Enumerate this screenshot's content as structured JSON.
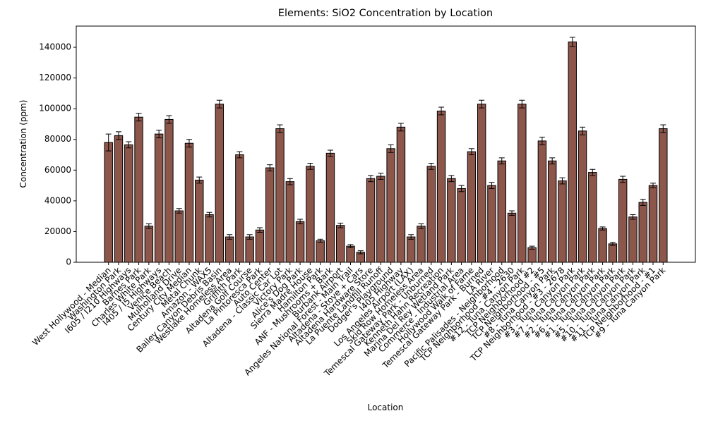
{
  "chart_data": {
    "type": "bar",
    "title": "Elements: SiO2 Concentration by Location",
    "xlabel": "Location",
    "ylabel": "Concentration (ppm)",
    "color": "#8c564b",
    "edgecolor": "#000000",
    "categories": [
      "West Hollywood - Median",
      "Washington Park",
      "I605 / I210 Highways",
      "Barnes Park",
      "Charles White Park",
      "I405 / I5 Highways",
      "Venice Beach",
      "Mulholland Drive",
      "Century City Median",
      "Metal Chunk",
      "Amazon - WAX5",
      "Bailey Canyon Debris Basin",
      "Westlake Homeless Area",
      "Griffith Park",
      "Altadena Golf Course",
      "La Pintoresca Park",
      "Auto Center",
      "Altadena - Classic Car Lot",
      "Victory Park",
      "Alice's Dog Park",
      "Sierra Madre House",
      "Hamilton Park",
      "ANF - Mushrooms + Bark",
      "Burbank Airport",
      "Angeles National Forest - Main Trail",
      "Altadena - Stove + Cars",
      "Altadena Hardware Store",
      "La Puente Landfill Runoff",
      "Dodger's Playground",
      "I405 Highway",
      "Los Angeles Airport (LAX)",
      "Skid Row Homeless Area",
      "Temescal Gateway Park - Unburned",
      "Kenneth Hahn Recreation",
      "Marina Del Rey Wetland Park",
      "Commerce - Industrial Area",
      "Hollywood Walk of Fame",
      "Temescal Gateway Park - Burned",
      "LA River",
      "Pacific Palisades - Neighborhood",
      "TCP Neighborhood - #4 - 2630",
      "#12 - Tuna Canyon Park",
      "TCP Neighborhood #2",
      "TCP Neighborhood - #5",
      "#8 - Tuna Canyon Park",
      "TCP Neighborhood - #3 - 2678",
      "#3 - Tuna Canyon Park",
      "#7 - Tuna Canyon Park",
      "#2 - Tuna Canyon Park",
      "#6 - Tuna Canyon Park",
      "#1 - Tuna Canyon Park",
      "#5 - Tuna Canyon Park",
      "#10 - Tuna Canyon Park",
      "#11 - Tuna Canyon Park",
      "TCP Neighborhood - #1",
      "#9 - Tuna Canyon Park"
    ],
    "values": [
      78000,
      82500,
      76500,
      94500,
      23500,
      83500,
      93000,
      33500,
      77500,
      53500,
      31000,
      103000,
      16500,
      70000,
      16500,
      21000,
      61500,
      87000,
      52500,
      26500,
      62500,
      14000,
      71000,
      24000,
      10500,
      6500,
      54500,
      56000,
      74000,
      88000,
      16500,
      23500,
      62500,
      98500,
      54500,
      48000,
      72000,
      103000,
      50000,
      66000,
      32000,
      103000,
      9500,
      79000,
      66000,
      53000,
      143500,
      85500,
      58500,
      22000,
      12000,
      54000,
      29500,
      39000,
      50000,
      87000
    ],
    "errors": [
      5500,
      2500,
      2000,
      2500,
      1500,
      2500,
      2500,
      1500,
      2500,
      2000,
      1500,
      2500,
      1500,
      2000,
      1500,
      1500,
      2000,
      2500,
      2000,
      1500,
      2000,
      1000,
      2000,
      1500,
      1000,
      1000,
      2000,
      2000,
      2500,
      2500,
      1500,
      1500,
      2000,
      2500,
      2000,
      2000,
      2000,
      2500,
      2000,
      2000,
      1500,
      2500,
      1000,
      2500,
      2000,
      2000,
      3000,
      2500,
      2000,
      1000,
      1000,
      2000,
      1500,
      2000,
      1500,
      2500
    ],
    "ylim": [
      0,
      153800
    ],
    "yticks": [
      0,
      20000,
      40000,
      60000,
      80000,
      100000,
      120000,
      140000
    ]
  }
}
